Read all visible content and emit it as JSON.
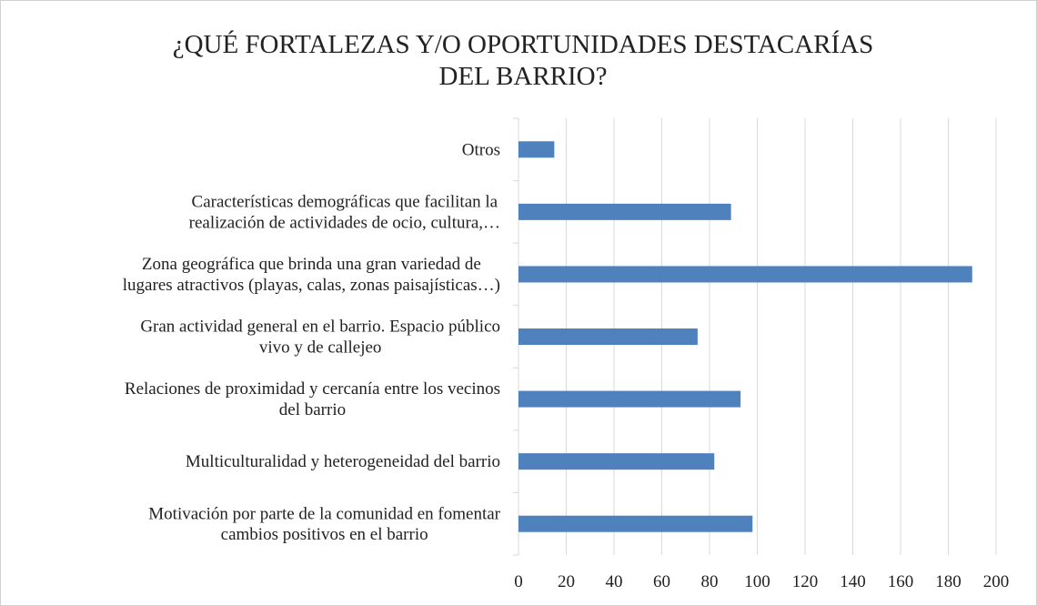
{
  "chart_data": {
    "type": "bar",
    "orientation": "horizontal",
    "title": "¿QUÉ FORTALEZAS Y/O OPORTUNIDADES DESTACARÍAS\nDEL BARRIO?",
    "categories": [
      "Motivación por parte de la comunidad en fomentar\ncambios positivos en el barrio",
      "Multiculturalidad y heterogeneidad del barrio",
      "Relaciones de proximidad y cercanía entre los vecinos\ndel barrio",
      "Gran actividad general en el barrio. Espacio público\nvivo y de callejeo",
      "Zona geográfica que brinda una gran variedad de\nlugares atractivos (playas, calas, zonas paisajísticas…)",
      "Características demográficas que facilitan la\nrealización de actividades de ocio, cultura,…",
      "Otros"
    ],
    "values": [
      98,
      82,
      93,
      75,
      190,
      89,
      15
    ],
    "color": "#4f81bd",
    "xlim": [
      0,
      200
    ],
    "xticks": [
      0,
      20,
      40,
      60,
      80,
      100,
      120,
      140,
      160,
      180,
      200
    ],
    "grid": true
  }
}
